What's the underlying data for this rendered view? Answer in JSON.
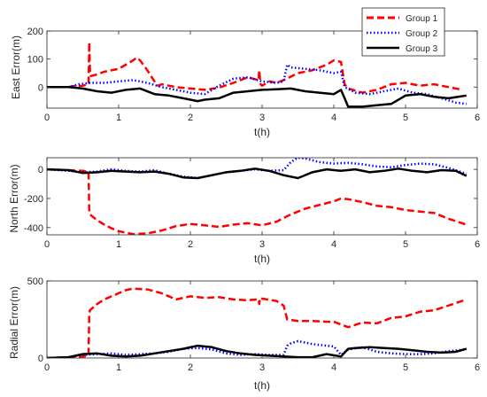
{
  "chart_data": [
    {
      "type": "line",
      "xlabel": "t(h)",
      "ylabel": "East Error(m)",
      "xlim": [
        0,
        6
      ],
      "ylim": [
        -75,
        200
      ],
      "xticks": [
        "0",
        "1",
        "2",
        "3",
        "4",
        "5",
        "6"
      ],
      "yticks": [
        {
          "value": 0,
          "label": "0"
        },
        {
          "value": 100,
          "label": "100"
        },
        {
          "value": 200,
          "label": "200"
        }
      ],
      "grid": false,
      "legend": {
        "placement": "top-right",
        "entries": [
          "Group 1",
          "Group 2",
          "Group 3"
        ]
      },
      "series": [
        {
          "name": "Group 1",
          "color": "#ff0000",
          "style": "dashed",
          "x": [
            0,
            0.3,
            0.35,
            0.5,
            0.58,
            0.59,
            0.6,
            0.61,
            0.62,
            0.7,
            0.8,
            1.0,
            1.1,
            1.2,
            1.25,
            1.3,
            1.4,
            1.5,
            1.55,
            1.6,
            1.8,
            2.0,
            2.2,
            2.4,
            2.6,
            2.8,
            2.95,
            2.96,
            2.97,
            2.98,
            3.0,
            3.1,
            3.2,
            3.3,
            3.5,
            3.7,
            3.9,
            4.0,
            4.1,
            4.15,
            4.2,
            4.4,
            4.6,
            4.8,
            5.0,
            5.2,
            5.4,
            5.6,
            5.8
          ],
          "y": [
            0,
            0,
            3,
            5,
            10,
            160,
            60,
            40,
            40,
            45,
            55,
            65,
            80,
            95,
            105,
            95,
            60,
            20,
            5,
            10,
            0,
            -5,
            -10,
            -2,
            15,
            35,
            25,
            60,
            30,
            10,
            5,
            20,
            15,
            25,
            50,
            60,
            80,
            95,
            90,
            10,
            -5,
            -20,
            -10,
            10,
            15,
            5,
            10,
            0,
            -10
          ]
        },
        {
          "name": "Group 2",
          "color": "#0000ff",
          "style": "dotted",
          "x": [
            0,
            0.3,
            0.45,
            0.6,
            0.8,
            1.0,
            1.2,
            1.4,
            1.6,
            1.8,
            2.0,
            2.2,
            2.4,
            2.6,
            2.8,
            3.0,
            3.2,
            3.3,
            3.35,
            3.4,
            3.6,
            3.8,
            4.0,
            4.1,
            4.15,
            4.3,
            4.5,
            4.7,
            4.9,
            5.1,
            5.3,
            5.5,
            5.7,
            5.85
          ],
          "y": [
            0,
            0,
            10,
            15,
            15,
            20,
            25,
            15,
            0,
            -10,
            -20,
            -25,
            5,
            30,
            35,
            20,
            15,
            20,
            80,
            70,
            65,
            60,
            50,
            55,
            0,
            -20,
            -25,
            -15,
            -5,
            -20,
            -25,
            -40,
            -55,
            -60
          ]
        },
        {
          "name": "Group 3",
          "color": "#000000",
          "style": "solid",
          "x": [
            0,
            0.3,
            0.5,
            0.7,
            0.9,
            1.1,
            1.3,
            1.5,
            1.7,
            1.9,
            2.0,
            2.1,
            2.2,
            2.4,
            2.6,
            2.8,
            3.0,
            3.2,
            3.4,
            3.6,
            3.8,
            4.0,
            4.1,
            4.15,
            4.2,
            4.4,
            4.6,
            4.8,
            5.0,
            5.2,
            5.4,
            5.6,
            5.85
          ],
          "y": [
            0,
            0,
            -5,
            -15,
            -20,
            -10,
            -5,
            -25,
            -30,
            -40,
            -45,
            -50,
            -45,
            -40,
            -20,
            -15,
            -10,
            -8,
            -5,
            -15,
            -20,
            -25,
            -10,
            -40,
            -70,
            -70,
            -65,
            -60,
            -30,
            -25,
            -35,
            -40,
            -30
          ]
        }
      ]
    },
    {
      "type": "line",
      "xlabel": "t(h)",
      "ylabel": "North Error(m)",
      "xlim": [
        0,
        6
      ],
      "ylim": [
        -450,
        80
      ],
      "xticks": [
        "0",
        "1",
        "2",
        "3",
        "4",
        "5",
        "6"
      ],
      "yticks": [
        {
          "value": -400,
          "label": "-400"
        },
        {
          "value": -200,
          "label": "-200"
        },
        {
          "value": 0,
          "label": "0"
        }
      ],
      "grid": false,
      "series": [
        {
          "name": "Group 1",
          "color": "#ff0000",
          "style": "dashed",
          "x": [
            0,
            0.3,
            0.5,
            0.58,
            0.59,
            0.6,
            0.7,
            0.8,
            0.9,
            1.0,
            1.2,
            1.4,
            1.6,
            1.8,
            2.0,
            2.2,
            2.4,
            2.6,
            2.8,
            3.0,
            3.2,
            3.4,
            3.6,
            3.8,
            4.0,
            4.1,
            4.2,
            4.4,
            4.6,
            4.8,
            5.0,
            5.2,
            5.4,
            5.6,
            5.85
          ],
          "y": [
            0,
            -5,
            -10,
            -15,
            -290,
            -310,
            -350,
            -380,
            -405,
            -425,
            -445,
            -440,
            -420,
            -390,
            -375,
            -385,
            -395,
            -380,
            -370,
            -385,
            -360,
            -310,
            -270,
            -245,
            -220,
            -200,
            -205,
            -225,
            -250,
            -260,
            -280,
            -290,
            -300,
            -340,
            -380
          ]
        },
        {
          "name": "Group 2",
          "color": "#0000ff",
          "style": "dotted",
          "x": [
            0,
            0.3,
            0.5,
            0.7,
            0.9,
            1.1,
            1.3,
            1.5,
            1.7,
            1.9,
            2.1,
            2.3,
            2.5,
            2.7,
            2.9,
            3.1,
            3.3,
            3.4,
            3.5,
            3.6,
            3.8,
            4.0,
            4.2,
            4.4,
            4.6,
            4.8,
            5.0,
            5.2,
            5.4,
            5.6,
            5.85
          ],
          "y": [
            0,
            -10,
            -20,
            -15,
            0,
            -10,
            -15,
            -5,
            -30,
            -50,
            -60,
            -40,
            -20,
            -10,
            0,
            -10,
            -5,
            50,
            80,
            75,
            50,
            40,
            45,
            35,
            20,
            15,
            30,
            40,
            35,
            10,
            -30
          ]
        },
        {
          "name": "Group 3",
          "color": "#000000",
          "style": "solid",
          "x": [
            0,
            0.3,
            0.5,
            0.7,
            0.9,
            1.1,
            1.3,
            1.5,
            1.7,
            1.9,
            2.1,
            2.3,
            2.5,
            2.7,
            2.9,
            3.1,
            3.3,
            3.5,
            3.7,
            3.9,
            4.1,
            4.3,
            4.5,
            4.7,
            4.9,
            5.1,
            5.3,
            5.5,
            5.7,
            5.85
          ],
          "y": [
            0,
            -5,
            -25,
            -20,
            -10,
            -15,
            -20,
            -15,
            -30,
            -55,
            -60,
            -40,
            -20,
            -10,
            5,
            -10,
            -40,
            -60,
            -20,
            0,
            -10,
            0,
            -20,
            -10,
            5,
            -10,
            -20,
            -5,
            -10,
            -45
          ]
        }
      ]
    },
    {
      "type": "line",
      "xlabel": "t(h)",
      "ylabel": "Radial Error(m)",
      "xlim": [
        0,
        6
      ],
      "ylim": [
        0,
        500
      ],
      "xticks": [
        "0",
        "1",
        "2",
        "3",
        "4",
        "5",
        "6"
      ],
      "yticks": [
        {
          "value": 0,
          "label": "0"
        },
        {
          "value": 500,
          "label": "500"
        }
      ],
      "grid": false,
      "series": [
        {
          "name": "Group 1",
          "color": "#ff0000",
          "style": "dashed",
          "x": [
            0,
            0.3,
            0.5,
            0.58,
            0.59,
            0.6,
            0.7,
            0.8,
            0.9,
            1.0,
            1.1,
            1.2,
            1.4,
            1.6,
            1.8,
            2.0,
            2.2,
            2.4,
            2.6,
            2.8,
            2.95,
            2.96,
            2.97,
            3.0,
            3.2,
            3.3,
            3.35,
            3.5,
            3.7,
            3.9,
            4.0,
            4.2,
            4.4,
            4.6,
            4.8,
            5.0,
            5.2,
            5.4,
            5.6,
            5.85
          ],
          "y": [
            0,
            5,
            10,
            15,
            290,
            310,
            350,
            380,
            400,
            420,
            440,
            450,
            445,
            420,
            380,
            400,
            390,
            395,
            380,
            375,
            380,
            350,
            390,
            385,
            370,
            340,
            250,
            240,
            240,
            235,
            235,
            200,
            230,
            225,
            260,
            270,
            300,
            310,
            340,
            380
          ]
        },
        {
          "name": "Group 2",
          "color": "#0000ff",
          "style": "dotted",
          "x": [
            0,
            0.3,
            0.5,
            0.7,
            0.9,
            1.1,
            1.3,
            1.5,
            1.7,
            1.9,
            2.1,
            2.3,
            2.5,
            2.7,
            2.9,
            3.1,
            3.3,
            3.35,
            3.4,
            3.5,
            3.7,
            3.9,
            4.0,
            4.1,
            4.2,
            4.4,
            4.6,
            4.8,
            5.0,
            5.2,
            5.4,
            5.6,
            5.85
          ],
          "y": [
            0,
            5,
            20,
            25,
            30,
            20,
            25,
            30,
            40,
            60,
            65,
            55,
            30,
            20,
            25,
            20,
            20,
            80,
            95,
            110,
            90,
            80,
            75,
            20,
            55,
            70,
            40,
            30,
            25,
            25,
            30,
            45,
            55
          ]
        },
        {
          "name": "Group 3",
          "color": "#000000",
          "style": "solid",
          "x": [
            0,
            0.3,
            0.5,
            0.7,
            0.9,
            1.1,
            1.3,
            1.5,
            1.7,
            1.9,
            2.1,
            2.3,
            2.5,
            2.7,
            2.9,
            3.1,
            3.3,
            3.5,
            3.7,
            3.9,
            4.1,
            4.2,
            4.3,
            4.5,
            4.7,
            4.9,
            5.1,
            5.3,
            5.5,
            5.7,
            5.85
          ],
          "y": [
            0,
            5,
            25,
            30,
            15,
            10,
            15,
            30,
            45,
            60,
            80,
            70,
            45,
            30,
            20,
            15,
            10,
            5,
            5,
            25,
            10,
            60,
            65,
            70,
            65,
            60,
            50,
            40,
            35,
            40,
            60
          ]
        }
      ]
    }
  ]
}
